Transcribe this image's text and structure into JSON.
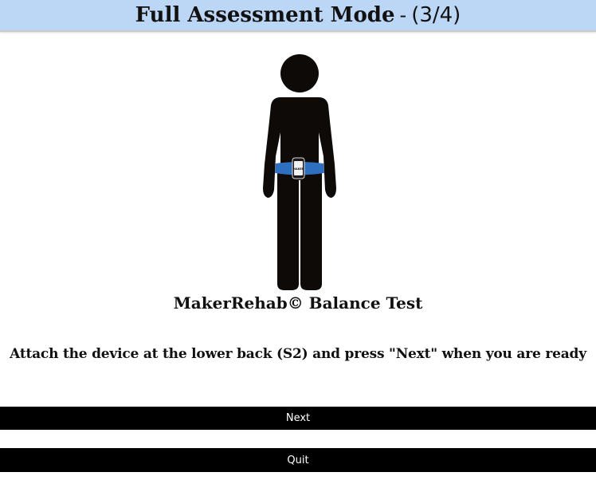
{
  "header": {
    "title": "Full Assessment Mode",
    "separator": "-",
    "step": "(3/4)",
    "background_color": "#bcd6f5"
  },
  "figure": {
    "icon": "standing-person-with-belt-device-icon",
    "device_label": "MAKER",
    "body_color": "#0d0a08",
    "belt_color": "#2f6fbf"
  },
  "brand": {
    "text": "MakerRehab© Balance Test"
  },
  "instruction": {
    "text": "Attach the device at the lower back (S2) and press \"Next\" when you are ready"
  },
  "buttons": {
    "next_label": "Next",
    "quit_label": "Quit"
  }
}
